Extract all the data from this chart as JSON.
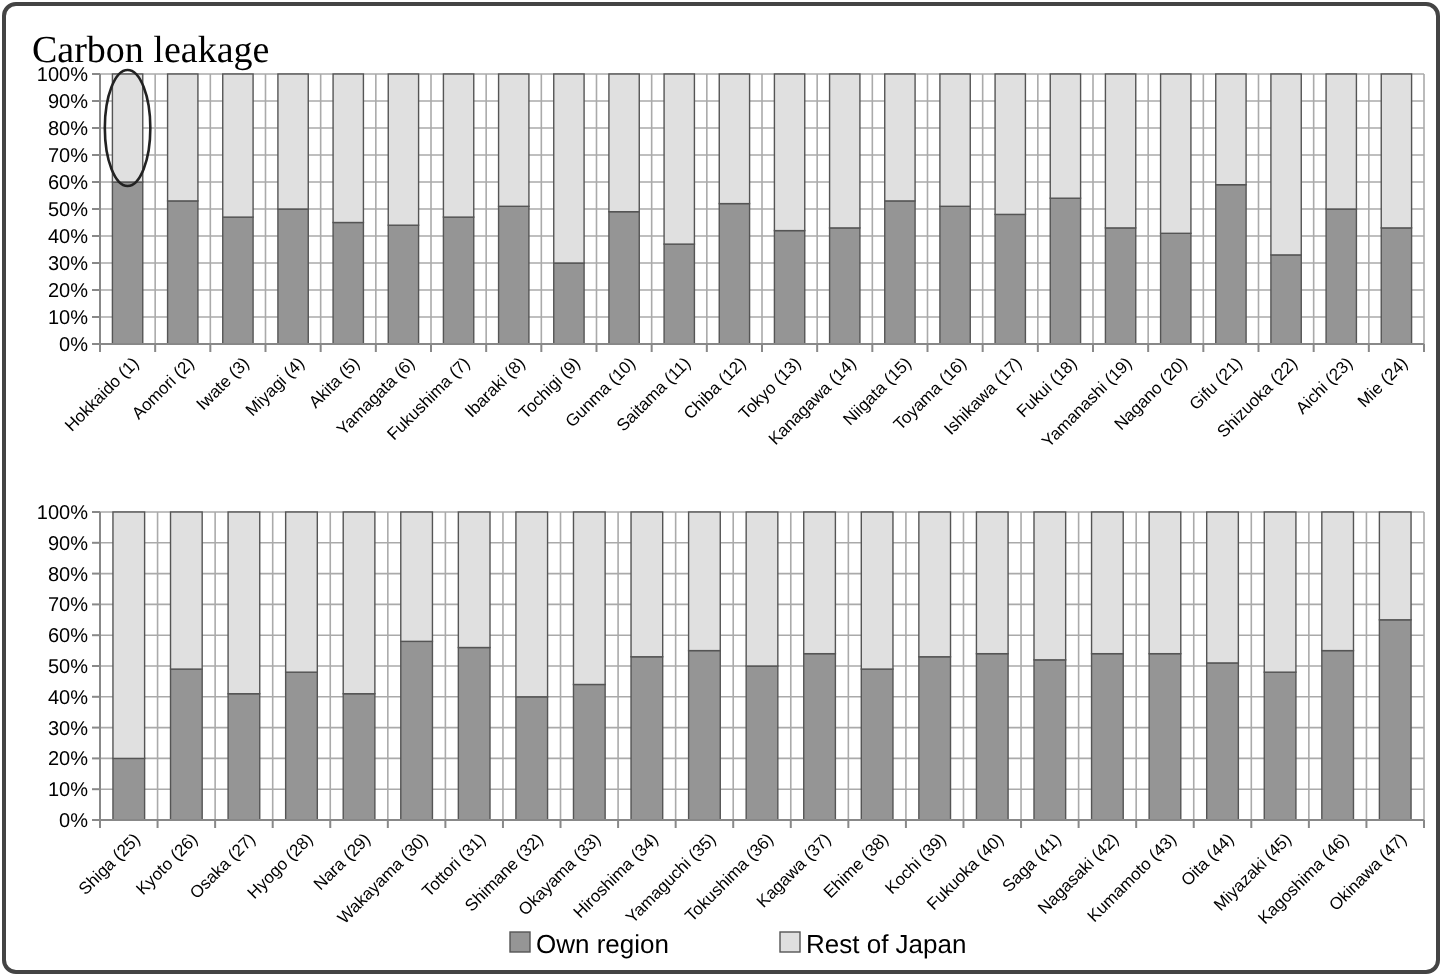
{
  "chart_data": [
    {
      "type": "bar",
      "title": "Carbon leakage",
      "stacked": true,
      "grid": true,
      "legend": false,
      "categories": [
        "Hokkaido (1)",
        "Aomori (2)",
        "Iwate (3)",
        "Miyagi (4)",
        "Akita (5)",
        "Yamagata (6)",
        "Fukushima (7)",
        "Ibaraki (8)",
        "Tochigi (9)",
        "Gunma (10)",
        "Saitama (11)",
        "Chiba (12)",
        "Tokyo (13)",
        "Kanagawa (14)",
        "Niigata (15)",
        "Toyama (16)",
        "Ishikawa (17)",
        "Fukui (18)",
        "Yamanashi (19)",
        "Nagano (20)",
        "Gifu (21)",
        "Shizuoka (22)",
        "Aichi (23)",
        "Mie (24)"
      ],
      "series": [
        {
          "color": "#959595",
          "values": [
            60,
            53,
            47,
            50,
            45,
            44,
            47,
            51,
            30,
            49,
            37,
            52,
            42,
            43,
            53,
            51,
            48,
            54,
            43,
            41,
            59,
            33,
            50,
            43
          ]
        },
        {
          "color": "#e0e0e0",
          "values": [
            40,
            47,
            53,
            50,
            55,
            56,
            53,
            49,
            70,
            51,
            63,
            48,
            58,
            57,
            47,
            49,
            52,
            46,
            57,
            59,
            41,
            67,
            50,
            57
          ]
        }
      ],
      "ylim": [
        0,
        100
      ],
      "yticks": [
        {
          "value": 0,
          "label": "0%"
        },
        {
          "value": 10,
          "label": "10%"
        },
        {
          "value": 20,
          "label": "20%"
        },
        {
          "value": 30,
          "label": "30%"
        },
        {
          "value": 40,
          "label": "40%"
        },
        {
          "value": 50,
          "label": "50%"
        },
        {
          "value": 60,
          "label": "60%"
        },
        {
          "value": 70,
          "label": "70%"
        },
        {
          "value": 80,
          "label": "80%"
        },
        {
          "value": 90,
          "label": "90%"
        },
        {
          "value": 100,
          "label": "100%"
        }
      ]
    },
    {
      "type": "bar",
      "stacked": true,
      "grid": true,
      "legend": "bottom",
      "categories": [
        "Shiga (25)",
        "Kyoto (26)",
        "Osaka (27)",
        "Hyogo (28)",
        "Nara (29)",
        "Wakayama (30)",
        "Tottori (31)",
        "Shimane (32)",
        "Okayama (33)",
        "Hiroshima (34)",
        "Yamaguchi (35)",
        "Tokushima (36)",
        "Kagawa (37)",
        "Ehime (38)",
        "Kochi (39)",
        "Fukuoka (40)",
        "Saga (41)",
        "Nagasaki (42)",
        "Kumamoto (43)",
        "Oita (44)",
        "Miyazaki (45)",
        "Kagoshima (46)",
        "Okinawa (47)"
      ],
      "series": [
        {
          "name": "Own region",
          "color": "#959595",
          "values": [
            20,
            49,
            41,
            48,
            41,
            58,
            56,
            40,
            44,
            53,
            55,
            50,
            54,
            49,
            53,
            54,
            52,
            54,
            54,
            51,
            48,
            55,
            65
          ]
        },
        {
          "name": "Rest of Japan",
          "color": "#e0e0e0",
          "values": [
            80,
            51,
            59,
            52,
            59,
            42,
            44,
            60,
            56,
            47,
            45,
            50,
            46,
            51,
            47,
            46,
            48,
            46,
            46,
            49,
            52,
            45,
            35
          ]
        }
      ],
      "ylim": [
        0,
        100
      ],
      "yticks": [
        {
          "value": 0,
          "label": "0%"
        },
        {
          "value": 10,
          "label": "10%"
        },
        {
          "value": 20,
          "label": "20%"
        },
        {
          "value": 30,
          "label": "30%"
        },
        {
          "value": 40,
          "label": "40%"
        },
        {
          "value": 50,
          "label": "50%"
        },
        {
          "value": 60,
          "label": "60%"
        },
        {
          "value": 70,
          "label": "70%"
        },
        {
          "value": 80,
          "label": "80%"
        },
        {
          "value": 90,
          "label": "90%"
        },
        {
          "value": 100,
          "label": "100%"
        }
      ]
    }
  ]
}
